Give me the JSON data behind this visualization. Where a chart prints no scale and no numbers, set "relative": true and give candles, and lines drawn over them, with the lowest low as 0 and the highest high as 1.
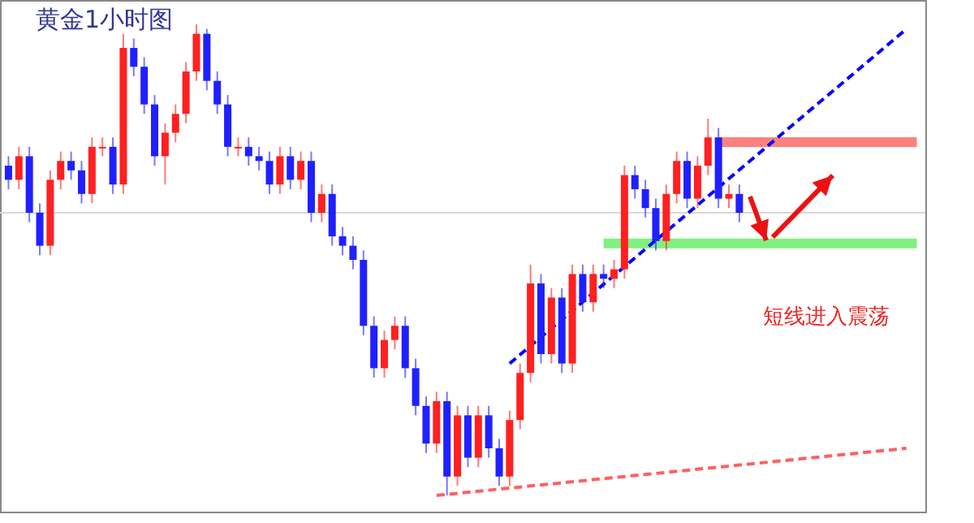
{
  "chart_data": {
    "type": "candlestick",
    "title": "黄金1小时图",
    "annotations": [
      "短线进入震荡"
    ],
    "relative": true,
    "categories": [
      null,
      null,
      null,
      null,
      null,
      null,
      null,
      null,
      null,
      null,
      null,
      null,
      null,
      null,
      null,
      null,
      null,
      null,
      null,
      null,
      null,
      null,
      null,
      null,
      null,
      null,
      null,
      null,
      null,
      null,
      null,
      null,
      null,
      null,
      null,
      null,
      null,
      null,
      null,
      null,
      null,
      null,
      null,
      null,
      null,
      null,
      null,
      null,
      null,
      null,
      null,
      null,
      null,
      null,
      null,
      null,
      null,
      null,
      null,
      null,
      null,
      null,
      null,
      null,
      null,
      null,
      null,
      null,
      null,
      null,
      null,
      null,
      null,
      null,
      null,
      null,
      null,
      null,
      null,
      null,
      null,
      null,
      null,
      null,
      null,
      null,
      null,
      null
    ],
    "ohlc": [
      [
        0.7,
        0.72,
        0.65,
        0.67
      ],
      [
        0.67,
        0.74,
        0.65,
        0.72
      ],
      [
        0.72,
        0.74,
        0.58,
        0.6
      ],
      [
        0.6,
        0.62,
        0.51,
        0.53
      ],
      [
        0.53,
        0.69,
        0.51,
        0.67
      ],
      [
        0.67,
        0.73,
        0.65,
        0.71
      ],
      [
        0.71,
        0.73,
        0.67,
        0.69
      ],
      [
        0.69,
        0.71,
        0.62,
        0.64
      ],
      [
        0.64,
        0.76,
        0.62,
        0.74
      ],
      [
        0.74,
        0.76,
        0.72,
        0.74
      ],
      [
        0.74,
        0.76,
        0.64,
        0.66
      ],
      [
        0.66,
        0.98,
        0.64,
        0.95
      ],
      [
        0.95,
        0.97,
        0.89,
        0.91
      ],
      [
        0.91,
        0.93,
        0.81,
        0.83
      ],
      [
        0.83,
        0.85,
        0.7,
        0.72
      ],
      [
        0.72,
        0.79,
        0.66,
        0.77
      ],
      [
        0.77,
        0.83,
        0.75,
        0.81
      ],
      [
        0.81,
        0.92,
        0.79,
        0.9
      ],
      [
        0.9,
        1,
        0.88,
        0.98
      ],
      [
        0.98,
        0.99,
        0.86,
        0.88
      ],
      [
        0.88,
        0.9,
        0.81,
        0.83
      ],
      [
        0.83,
        0.85,
        0.72,
        0.74
      ],
      [
        0.74,
        0.76,
        0.72,
        0.74
      ],
      [
        0.74,
        0.76,
        0.7,
        0.72
      ],
      [
        0.72,
        0.74,
        0.69,
        0.71
      ],
      [
        0.71,
        0.73,
        0.64,
        0.66
      ],
      [
        0.66,
        0.74,
        0.64,
        0.72
      ],
      [
        0.72,
        0.74,
        0.65,
        0.67
      ],
      [
        0.67,
        0.73,
        0.65,
        0.71
      ],
      [
        0.71,
        0.73,
        0.58,
        0.6
      ],
      [
        0.6,
        0.66,
        0.58,
        0.64
      ],
      [
        0.64,
        0.66,
        0.53,
        0.55
      ],
      [
        0.55,
        0.57,
        0.51,
        0.53
      ],
      [
        0.53,
        0.55,
        0.48,
        0.5
      ],
      [
        0.5,
        0.52,
        0.34,
        0.36
      ],
      [
        0.36,
        0.38,
        0.25,
        0.27
      ],
      [
        0.27,
        0.35,
        0.25,
        0.33
      ],
      [
        0.33,
        0.38,
        0.31,
        0.36
      ],
      [
        0.36,
        0.38,
        0.25,
        0.27
      ],
      [
        0.27,
        0.29,
        0.17,
        0.19
      ],
      [
        0.19,
        0.21,
        0.09,
        0.11
      ],
      [
        0.11,
        0.22,
        0.09,
        0.2
      ],
      [
        0.2,
        0.22,
        0,
        0.04
      ],
      [
        0.04,
        0.19,
        0.02,
        0.17
      ],
      [
        0.17,
        0.19,
        0.06,
        0.08
      ],
      [
        0.08,
        0.19,
        0.06,
        0.17
      ],
      [
        0.17,
        0.19,
        0.08,
        0.1
      ],
      [
        0.1,
        0.12,
        0.02,
        0.04
      ],
      [
        0.04,
        0.18,
        0.02,
        0.16
      ],
      [
        0.16,
        0.28,
        0.14,
        0.26
      ],
      [
        0.26,
        0.49,
        0.24,
        0.45
      ],
      [
        0.45,
        0.47,
        0.28,
        0.3
      ],
      [
        0.3,
        0.44,
        0.28,
        0.42
      ],
      [
        0.42,
        0.44,
        0.26,
        0.28
      ],
      [
        0.28,
        0.49,
        0.26,
        0.47
      ],
      [
        0.47,
        0.49,
        0.39,
        0.41
      ],
      [
        0.41,
        0.49,
        0.39,
        0.47
      ],
      [
        0.47,
        0.49,
        0.44,
        0.46
      ],
      [
        0.46,
        0.5,
        0.44,
        0.48
      ],
      [
        0.48,
        0.7,
        0.46,
        0.68
      ],
      [
        0.68,
        0.7,
        0.63,
        0.65
      ],
      [
        0.65,
        0.67,
        0.59,
        0.61
      ],
      [
        0.61,
        0.63,
        0.52,
        0.54
      ],
      [
        0.54,
        0.66,
        0.52,
        0.64
      ],
      [
        0.64,
        0.73,
        0.62,
        0.71
      ],
      [
        0.71,
        0.73,
        0.61,
        0.63
      ],
      [
        0.63,
        0.72,
        0.61,
        0.7
      ],
      [
        0.7,
        0.8,
        0.68,
        0.76
      ],
      [
        0.76,
        0.78,
        0.61,
        0.63
      ],
      [
        0.63,
        0.66,
        0.61,
        0.64
      ],
      [
        0.64,
        0.66,
        0.58,
        0.6
      ],
      null,
      null,
      null,
      null,
      null,
      null,
      null,
      null,
      null,
      null,
      null,
      null,
      null,
      null,
      null,
      null,
      null
    ],
    "series": [
      {
        "type": "line",
        "color": "#ff6060",
        "line_style": "dashed",
        "values": [
          null,
          null,
          null,
          null,
          null,
          null,
          null,
          null,
          null,
          null,
          null,
          null,
          null,
          null,
          null,
          null,
          null,
          null,
          null,
          null,
          null,
          null,
          null,
          null,
          null,
          null,
          null,
          null,
          null,
          null,
          null,
          null,
          null,
          null,
          null,
          null,
          null,
          null,
          null,
          null,
          null,
          0,
          null,
          null,
          null,
          null,
          null,
          null,
          null,
          null,
          null,
          null,
          null,
          null,
          null,
          null,
          null,
          null,
          null,
          null,
          null,
          null,
          null,
          null,
          null,
          null,
          null,
          null,
          null,
          null,
          null,
          null,
          null,
          null,
          null,
          null,
          null,
          null,
          null,
          null,
          null,
          null,
          null,
          null,
          null,
          null,
          0.1,
          null
        ]
      },
      {
        "type": "line",
        "color": "#ff8080",
        "line_style": "solid",
        "values": [
          null,
          null,
          null,
          null,
          null,
          null,
          null,
          null,
          null,
          null,
          null,
          null,
          null,
          null,
          null,
          null,
          null,
          null,
          null,
          null,
          null,
          null,
          null,
          null,
          null,
          null,
          null,
          null,
          null,
          null,
          null,
          null,
          null,
          null,
          null,
          null,
          null,
          null,
          null,
          null,
          null,
          null,
          null,
          null,
          null,
          null,
          null,
          null,
          null,
          null,
          null,
          null,
          null,
          null,
          null,
          null,
          null,
          null,
          null,
          null,
          null,
          null,
          null,
          null,
          null,
          null,
          null,
          null,
          0.75,
          null,
          null,
          null,
          null,
          null,
          null,
          null,
          null,
          null,
          null,
          null,
          null,
          null,
          null,
          null,
          null,
          null,
          null,
          0.75
        ]
      },
      {
        "type": "line",
        "color": "#80f080",
        "line_style": "solid",
        "values": [
          null,
          null,
          null,
          null,
          null,
          null,
          null,
          null,
          null,
          null,
          null,
          null,
          null,
          null,
          null,
          null,
          null,
          null,
          null,
          null,
          null,
          null,
          null,
          null,
          null,
          null,
          null,
          null,
          null,
          null,
          null,
          null,
          null,
          null,
          null,
          null,
          null,
          null,
          null,
          null,
          null,
          null,
          null,
          null,
          null,
          null,
          null,
          null,
          null,
          null,
          null,
          null,
          null,
          null,
          null,
          null,
          null,
          0.535,
          null,
          null,
          null,
          null,
          null,
          null,
          null,
          null,
          null,
          null,
          null,
          null,
          null,
          null,
          null,
          null,
          null,
          null,
          null,
          null,
          null,
          null,
          null,
          null,
          null,
          null,
          null,
          null,
          null,
          0.535
        ]
      },
      {
        "type": "line",
        "color": "#0000ff",
        "line_style": "dashed",
        "values": [
          null,
          null,
          null,
          null,
          null,
          null,
          null,
          null,
          null,
          null,
          null,
          null,
          null,
          null,
          null,
          null,
          null,
          null,
          null,
          null,
          null,
          null,
          null,
          null,
          null,
          null,
          null,
          null,
          null,
          null,
          null,
          null,
          null,
          null,
          null,
          null,
          null,
          null,
          null,
          null,
          null,
          null,
          null,
          null,
          null,
          null,
          null,
          null,
          0.28,
          null,
          null,
          null,
          null,
          null,
          null,
          null,
          null,
          null,
          null,
          null,
          null,
          null,
          null,
          null,
          null,
          null,
          null,
          null,
          null,
          null,
          null,
          null,
          null,
          null,
          null,
          null,
          null,
          null,
          null,
          null,
          null,
          null,
          null,
          null,
          null,
          null,
          0.99,
          null
        ]
      }
    ],
    "ref_lines": [
      {
        "axis": "y",
        "value": 0.6,
        "color": "#d8d8d8"
      }
    ]
  }
}
